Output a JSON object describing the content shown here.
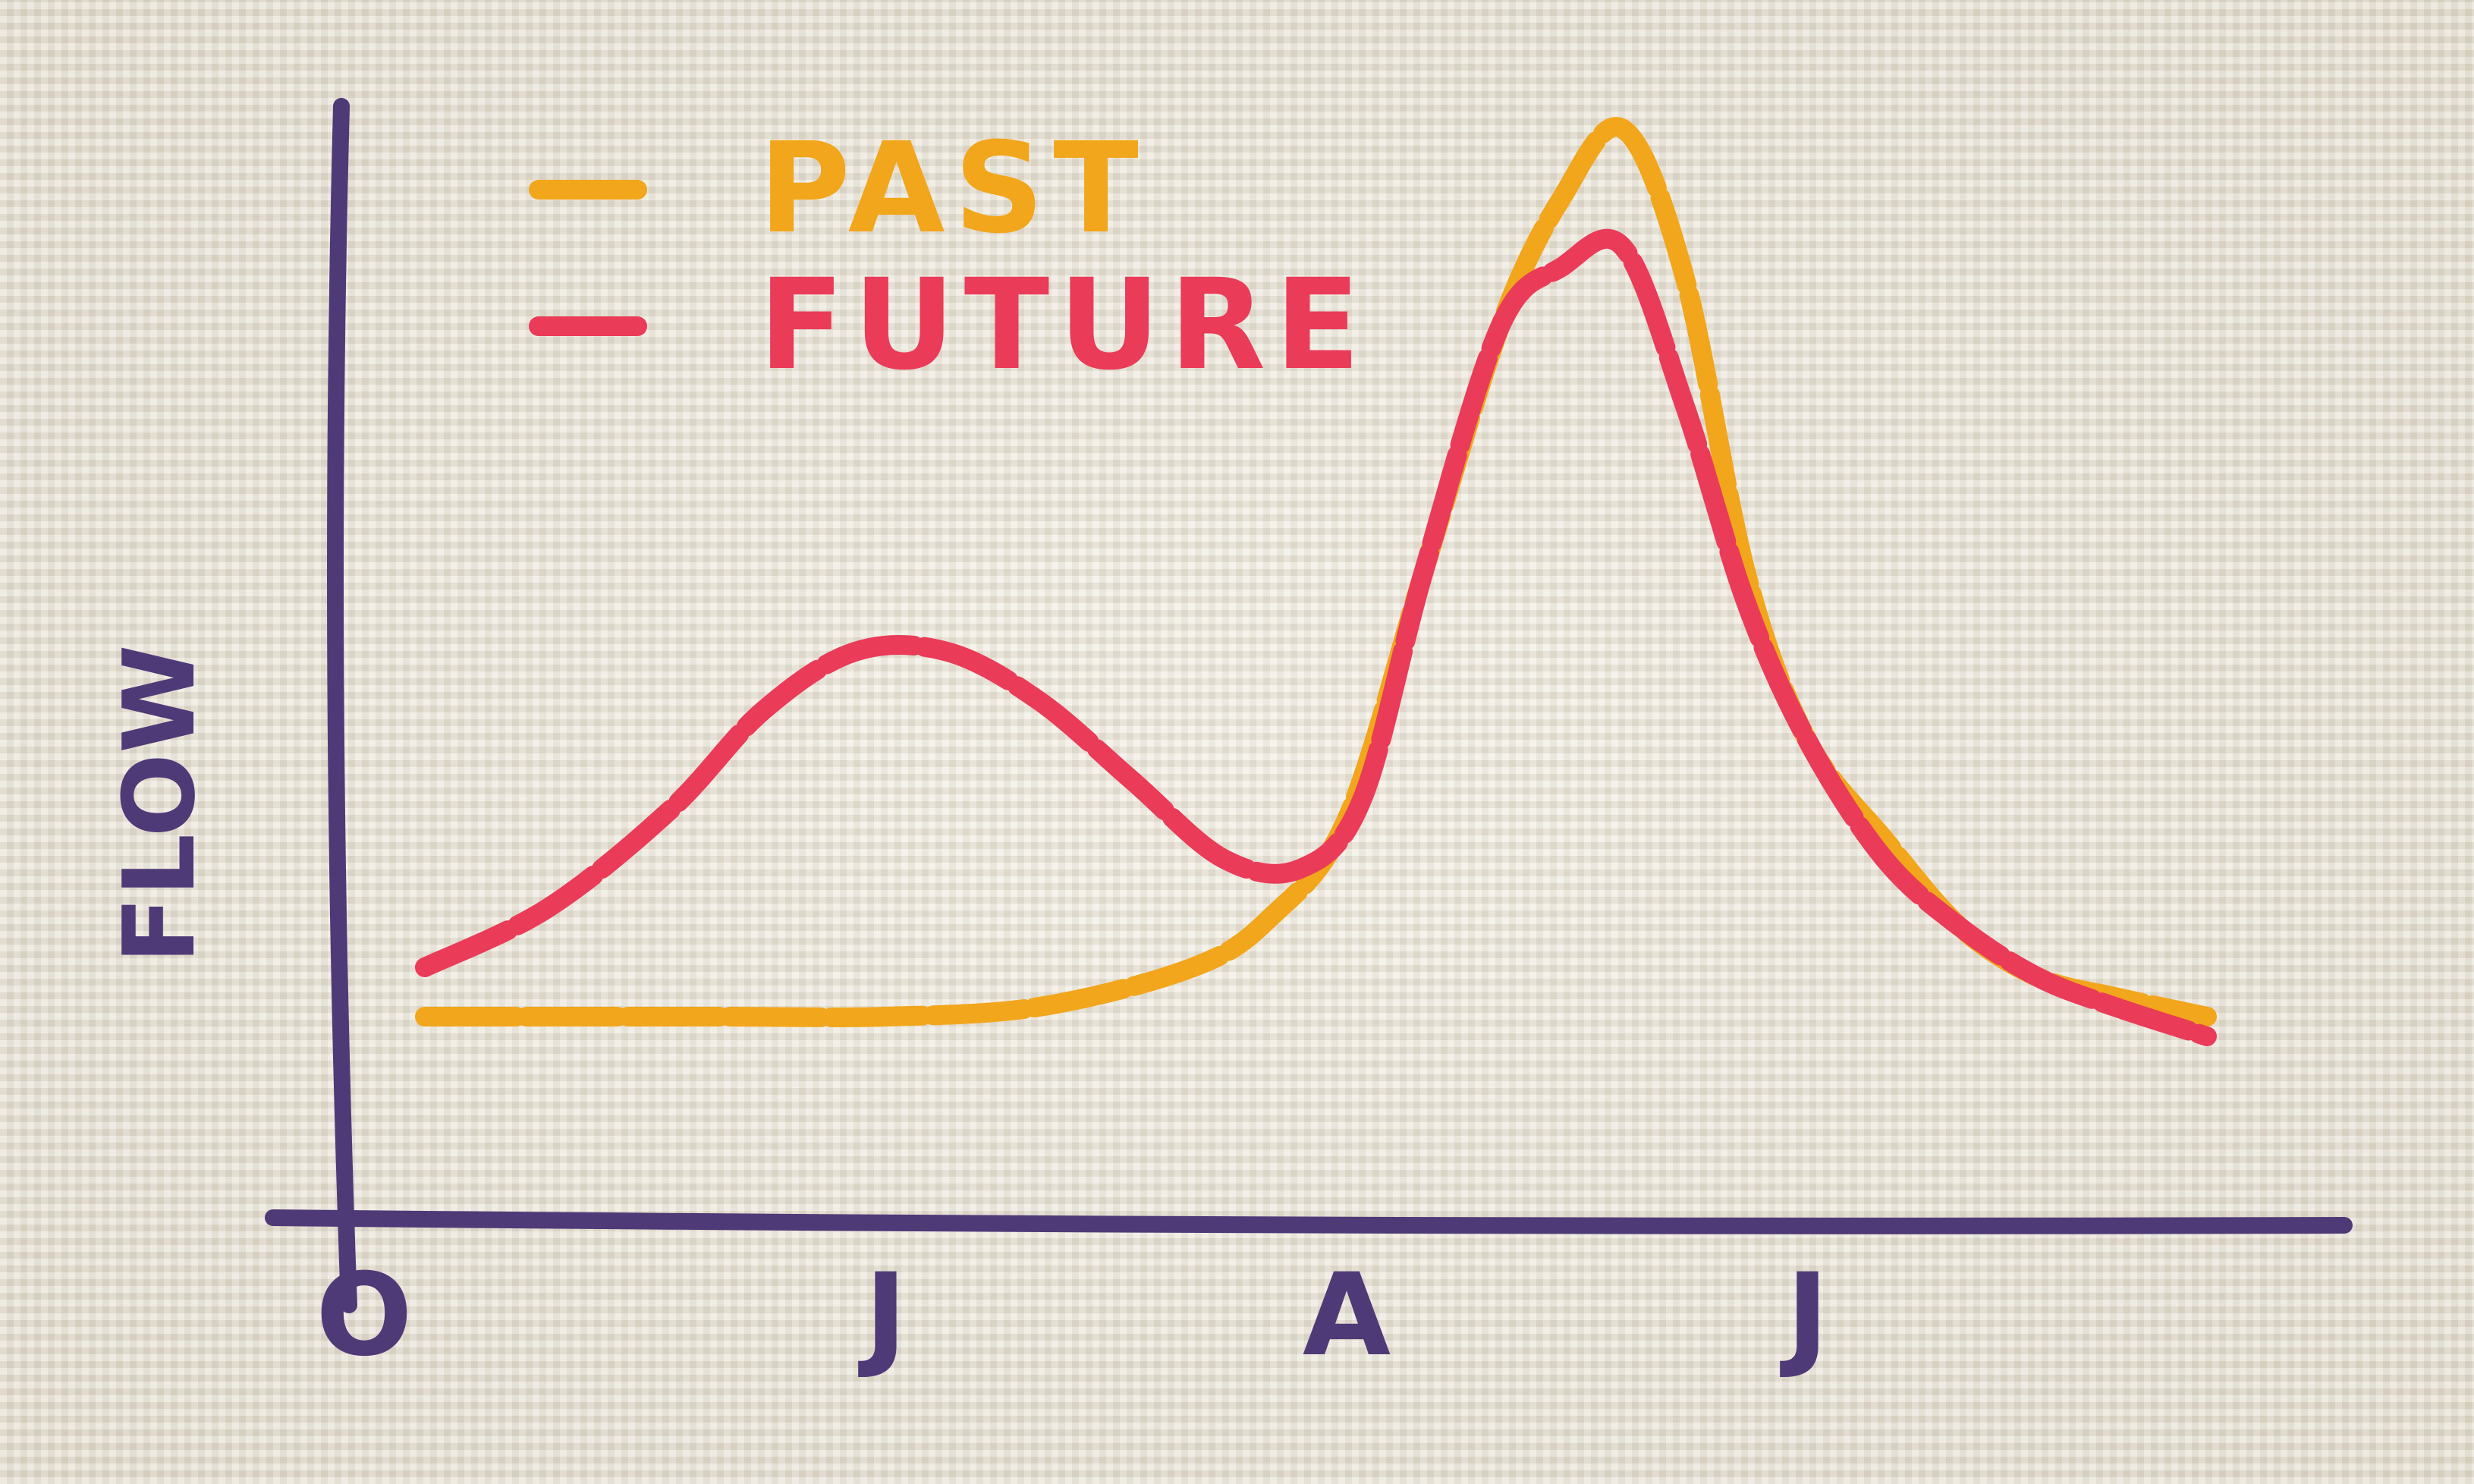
{
  "chart_data": {
    "type": "line",
    "title": "",
    "xlabel": "",
    "ylabel": "FLOW",
    "categories": [
      "O",
      "J",
      "A",
      "J"
    ],
    "x_ticks": [
      0,
      3,
      6,
      9
    ],
    "xlim": [
      0,
      12
    ],
    "ylim": [
      0,
      10
    ],
    "grid": false,
    "legend_position": "top-left",
    "series": [
      {
        "name": "PAST",
        "color": "#f2a61c",
        "style": "dashed",
        "x": [
          0,
          1,
          2,
          3,
          4,
          5,
          5.5,
          6,
          6.5,
          7,
          7.4,
          7.8,
          8.2,
          8.6,
          9,
          9.5,
          10,
          10.5,
          11,
          11.6
        ],
        "y": [
          1.0,
          1.0,
          1.0,
          1.0,
          1.1,
          1.5,
          2.0,
          3.0,
          5.5,
          8.0,
          9.3,
          10.0,
          8.5,
          5.5,
          3.8,
          2.8,
          1.9,
          1.4,
          1.2,
          1.0
        ]
      },
      {
        "name": "FUTURE",
        "color": "#ea3b58",
        "style": "dashed",
        "x": [
          0,
          0.8,
          1.6,
          2.2,
          2.8,
          3.4,
          4.0,
          4.6,
          5.2,
          5.7,
          6.1,
          6.5,
          7.0,
          7.4,
          7.8,
          8.2,
          8.6,
          9.0,
          9.5,
          10,
          10.5,
          11,
          11.6
        ],
        "y": [
          1.5,
          2.1,
          3.1,
          4.1,
          4.7,
          4.7,
          4.2,
          3.4,
          2.6,
          2.5,
          3.2,
          5.5,
          8.0,
          8.6,
          8.8,
          7.2,
          5.2,
          3.8,
          2.6,
          1.9,
          1.4,
          1.1,
          0.8
        ]
      }
    ]
  },
  "colors": {
    "axis": "#4f3a78",
    "past": "#f2a61c",
    "future": "#ea3b58"
  }
}
